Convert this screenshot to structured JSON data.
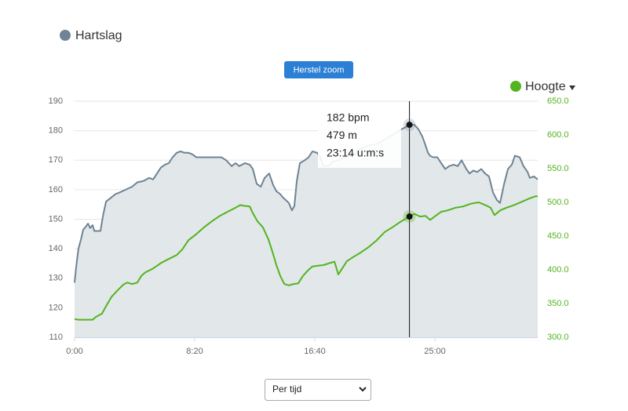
{
  "chart_data": {
    "type": "line",
    "legend": "top-left",
    "grid": true,
    "xlim": [
      0,
      1928
    ],
    "xticks": [
      {
        "value": 0,
        "label": "0:00"
      },
      {
        "value": 500,
        "label": "8:20"
      },
      {
        "value": 1000,
        "label": "16:40"
      },
      {
        "value": 1500,
        "label": "25:00"
      }
    ],
    "ylim": [
      110,
      190
    ],
    "yticks": [
      110,
      120,
      130,
      140,
      150,
      160,
      170,
      180,
      190
    ],
    "y2lim": [
      300,
      650
    ],
    "y2ticks": [
      {
        "value": 300,
        "label": "300.0"
      },
      {
        "value": 350,
        "label": "350.0"
      },
      {
        "value": 400,
        "label": "400.0"
      },
      {
        "value": 450,
        "label": "450.0"
      },
      {
        "value": 500,
        "label": "500.0"
      },
      {
        "value": 550,
        "label": "550.0"
      },
      {
        "value": 600,
        "label": "600.0"
      },
      {
        "value": 650,
        "label": "650.0"
      }
    ],
    "series": [
      {
        "name": "Hartslag",
        "color": "#6f8394",
        "fill": "#dfe4e8",
        "area": true,
        "x": [
          0,
          7,
          16,
          26,
          36,
          42,
          56,
          65,
          75,
          82,
          108,
          118,
          131,
          147,
          170,
          186,
          212,
          239,
          261,
          288,
          310,
          327,
          343,
          359,
          376,
          392,
          408,
          425,
          441,
          458,
          474,
          490,
          507,
          539,
          588,
          611,
          631,
          654,
          670,
          686,
          709,
          729,
          742,
          758,
          775,
          791,
          810,
          827,
          840,
          856,
          866,
          879,
          892,
          905,
          915,
          925,
          938,
          958,
          974,
          990,
          1010,
          1023,
          1036,
          1056,
          1075,
          1095,
          1127,
          1160,
          1193,
          1225,
          1258,
          1291,
          1323,
          1350,
          1373,
          1394,
          1415,
          1431,
          1448,
          1461,
          1471,
          1480,
          1493,
          1510,
          1526,
          1543,
          1559,
          1578,
          1595,
          1611,
          1631,
          1644,
          1660,
          1676,
          1693,
          1709,
          1725,
          1742,
          1758,
          1771,
          1788,
          1804,
          1820,
          1833,
          1853,
          1869,
          1886,
          1895,
          1912,
          1928
        ],
        "values": [
          128.5,
          134,
          140,
          143,
          146.5,
          147,
          148.5,
          147,
          148,
          146,
          146,
          151,
          156,
          157,
          158.5,
          159,
          160,
          161,
          162.5,
          163,
          164,
          163.5,
          165.5,
          167.5,
          168.5,
          169,
          171,
          172.5,
          173,
          172.5,
          172.5,
          172,
          171,
          171,
          171,
          171,
          170,
          168,
          169,
          168,
          169,
          168.5,
          167,
          162,
          161,
          164,
          165.5,
          161.5,
          159.5,
          158.5,
          157.5,
          156.5,
          155.5,
          153,
          154.5,
          163,
          169,
          170,
          171,
          173,
          172.5,
          171,
          168,
          168,
          169.5,
          170,
          171,
          172,
          174,
          175,
          175.5,
          177,
          178.5,
          180,
          181,
          182,
          182,
          180.5,
          178,
          175,
          172.5,
          171.5,
          171,
          171,
          169,
          167,
          168,
          168.5,
          168,
          170,
          167,
          165.5,
          166.5,
          166,
          167,
          165.5,
          164.5,
          159,
          156.5,
          155.5,
          162,
          167,
          168.5,
          171.5,
          171,
          168,
          166,
          164,
          164.5,
          163.5
        ]
      },
      {
        "name": "Hoogte",
        "color": "#52b41f",
        "axis": "y2",
        "x": [
          0,
          16,
          49,
          75,
          88,
          114,
          131,
          154,
          180,
          203,
          219,
          239,
          261,
          278,
          294,
          327,
          359,
          392,
          425,
          448,
          474,
          507,
          539,
          572,
          605,
          637,
          670,
          690,
          703,
          729,
          742,
          761,
          784,
          807,
          824,
          840,
          856,
          873,
          892,
          912,
          931,
          951,
          971,
          990,
          1013,
          1036,
          1062,
          1082,
          1098,
          1114,
          1134,
          1160,
          1193,
          1225,
          1258,
          1291,
          1323,
          1356,
          1394,
          1415,
          1438,
          1461,
          1480,
          1503,
          1526,
          1552,
          1585,
          1618,
          1650,
          1683,
          1716,
          1732,
          1748,
          1771,
          1797,
          1830,
          1863,
          1895,
          1918,
          1928
        ],
        "values": [
          327,
          326,
          326,
          326,
          330,
          335,
          346,
          360,
          370,
          378,
          381,
          379,
          381,
          391,
          396,
          402,
          410,
          416,
          422,
          430,
          444,
          453,
          463,
          472,
          480,
          486,
          492,
          496,
          495,
          494,
          484,
          472,
          463,
          445,
          426,
          407,
          391,
          379,
          377,
          379,
          380,
          391,
          399,
          405,
          406,
          407,
          410,
          412,
          393,
          402,
          413,
          419,
          426,
          434,
          444,
          456,
          463,
          471,
          479,
          483,
          479,
          480,
          474,
          480,
          486,
          488,
          492,
          494,
          498,
          500,
          495,
          492,
          481,
          488,
          492,
          496,
          501,
          506,
          509,
          509
        ]
      }
    ],
    "tooltip": {
      "x": 1394,
      "heart_rate": 182,
      "altitude": 479,
      "lines": [
        "182 bpm",
        "479 m",
        "23:14 u:m:s"
      ]
    },
    "buttons": {
      "reset_zoom": "Herstel zoom",
      "mode_select": "Per tijd"
    }
  }
}
